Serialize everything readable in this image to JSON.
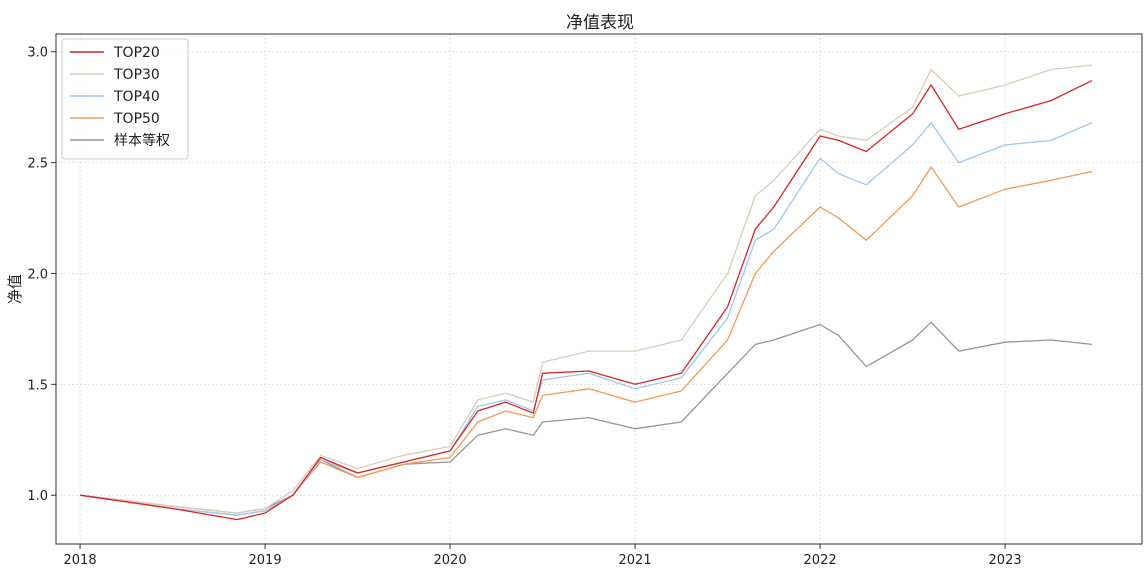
{
  "chart_data": {
    "type": "line",
    "title": "净值表现",
    "xlabel": "",
    "ylabel": "净值",
    "xlim": [
      2017.87,
      2023.74
    ],
    "ylim": [
      0.78,
      3.08
    ],
    "x_ticks": [
      2018,
      2019,
      2020,
      2021,
      2022,
      2023
    ],
    "x_tick_labels": [
      "2018",
      "2019",
      "2020",
      "2021",
      "2022",
      "2023"
    ],
    "y_ticks": [
      1.0,
      1.5,
      2.0,
      2.5,
      3.0
    ],
    "y_tick_labels": [
      "1.0",
      "1.5",
      "2.0",
      "2.5",
      "3.0"
    ],
    "grid": true,
    "legend_position": "top-left",
    "x": [
      2018.0,
      2018.5,
      2018.85,
      2019.0,
      2019.15,
      2019.3,
      2019.5,
      2019.75,
      2020.0,
      2020.15,
      2020.3,
      2020.45,
      2020.5,
      2020.75,
      2021.0,
      2021.25,
      2021.5,
      2021.65,
      2021.75,
      2022.0,
      2022.1,
      2022.25,
      2022.5,
      2022.6,
      2022.75,
      2023.0,
      2023.25,
      2023.47
    ],
    "series": [
      {
        "name": "TOP20",
        "color": "#d62728",
        "values": [
          1.0,
          0.94,
          0.89,
          0.92,
          1.0,
          1.17,
          1.1,
          1.15,
          1.2,
          1.38,
          1.42,
          1.37,
          1.55,
          1.56,
          1.5,
          1.55,
          1.85,
          2.2,
          2.3,
          2.62,
          2.6,
          2.55,
          2.72,
          2.85,
          2.65,
          2.72,
          2.78,
          2.87
        ]
      },
      {
        "name": "TOP30",
        "color": "#dccdb9",
        "values": [
          1.0,
          0.95,
          0.92,
          0.94,
          1.02,
          1.18,
          1.12,
          1.18,
          1.22,
          1.43,
          1.46,
          1.42,
          1.6,
          1.65,
          1.65,
          1.7,
          2.0,
          2.35,
          2.42,
          2.65,
          2.62,
          2.6,
          2.75,
          2.92,
          2.8,
          2.85,
          2.92,
          2.94
        ]
      },
      {
        "name": "TOP40",
        "color": "#9fc7ef",
        "values": [
          1.0,
          0.94,
          0.91,
          0.93,
          1.0,
          1.16,
          1.1,
          1.15,
          1.2,
          1.4,
          1.43,
          1.38,
          1.52,
          1.55,
          1.48,
          1.53,
          1.8,
          2.15,
          2.2,
          2.52,
          2.45,
          2.4,
          2.58,
          2.68,
          2.5,
          2.58,
          2.6,
          2.68
        ]
      },
      {
        "name": "TOP50",
        "color": "#f29a54",
        "values": [
          1.0,
          0.94,
          0.91,
          0.93,
          1.0,
          1.15,
          1.08,
          1.14,
          1.17,
          1.33,
          1.38,
          1.35,
          1.45,
          1.48,
          1.42,
          1.47,
          1.7,
          2.0,
          2.1,
          2.3,
          2.25,
          2.15,
          2.35,
          2.48,
          2.3,
          2.38,
          2.42,
          2.46
        ]
      },
      {
        "name": "样本等权",
        "color": "#969696",
        "values": [
          1.0,
          0.95,
          0.92,
          0.94,
          1.0,
          1.16,
          1.08,
          1.14,
          1.15,
          1.27,
          1.3,
          1.27,
          1.33,
          1.35,
          1.3,
          1.33,
          1.55,
          1.68,
          1.7,
          1.77,
          1.72,
          1.58,
          1.7,
          1.78,
          1.65,
          1.69,
          1.7,
          1.68
        ]
      }
    ]
  }
}
